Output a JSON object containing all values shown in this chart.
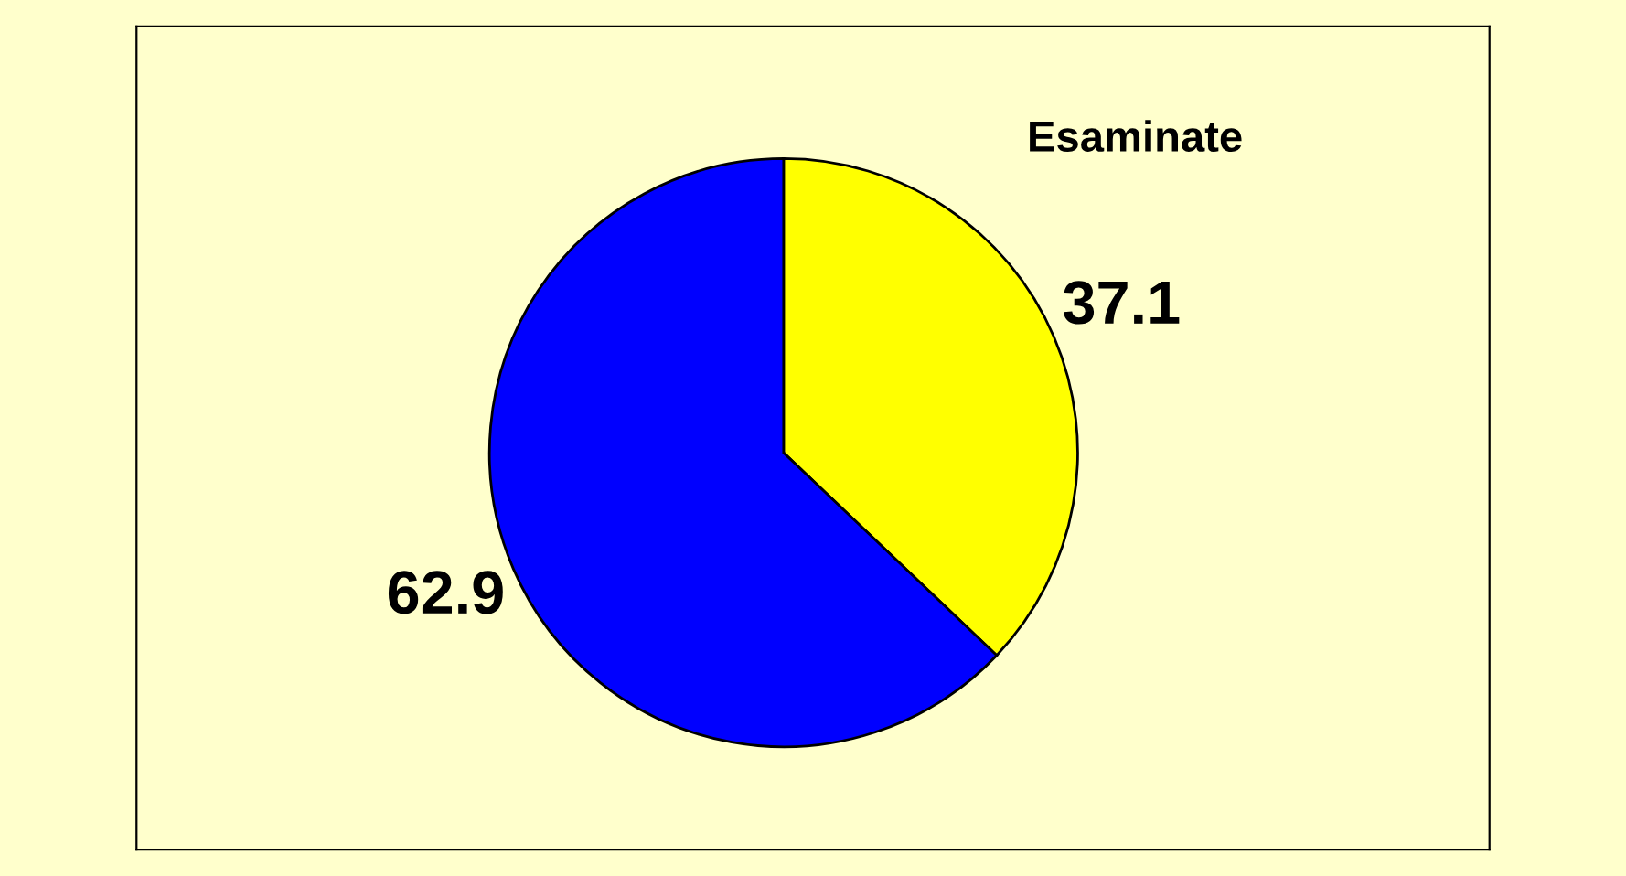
{
  "chart_data": {
    "type": "pie",
    "categories": [
      "Esaminate",
      null
    ],
    "values": [
      37.1,
      62.9
    ],
    "colors": [
      "#ffff00",
      "#0000ff"
    ],
    "data_labels": true,
    "legend": false
  }
}
